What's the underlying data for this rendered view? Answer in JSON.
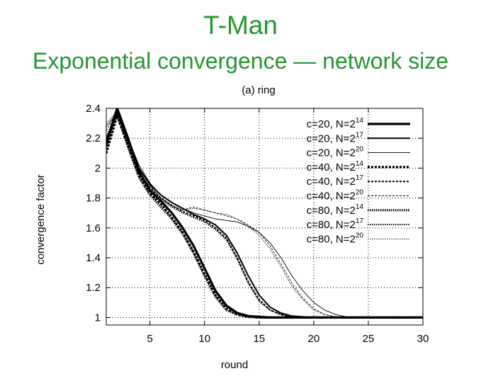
{
  "slide": {
    "title": "T-Man",
    "subtitle": "Exponential convergence — network size"
  },
  "chart_data": {
    "type": "line",
    "title": "(a) ring",
    "xlabel": "round",
    "ylabel": "convergence factor",
    "xlim": [
      1,
      30
    ],
    "ylim": [
      0.95,
      2.4
    ],
    "x_ticks": [
      5,
      10,
      15,
      20,
      25,
      30
    ],
    "y_ticks": [
      "1",
      "1.2",
      "1.4",
      "1.6",
      "1.8",
      "2",
      "2.2",
      "2.4"
    ],
    "grid": true,
    "legend_position": "top-right",
    "series": [
      {
        "name": "c=20, N=2^14",
        "label": "c=20, N=2",
        "exp": "14",
        "x": [
          1,
          2,
          3,
          4,
          5,
          6,
          7,
          8,
          9,
          10,
          11,
          12,
          13,
          14,
          15,
          16,
          17,
          18,
          19,
          20,
          25,
          30
        ],
        "y": [
          2.17,
          2.4,
          2.2,
          1.98,
          1.85,
          1.78,
          1.7,
          1.6,
          1.48,
          1.33,
          1.18,
          1.08,
          1.03,
          1.01,
          1.005,
          1.0,
          1.0,
          1.0,
          1.0,
          1.0,
          1.0,
          1.0
        ]
      },
      {
        "name": "c=20, N=2^17",
        "label": "c=20, N=2",
        "exp": "17",
        "x": [
          1,
          2,
          3,
          4,
          5,
          6,
          7,
          8,
          9,
          10,
          11,
          12,
          13,
          14,
          15,
          16,
          17,
          18,
          19,
          20,
          25,
          30
        ],
        "y": [
          2.15,
          2.39,
          2.2,
          2.0,
          1.89,
          1.82,
          1.77,
          1.73,
          1.69,
          1.66,
          1.62,
          1.55,
          1.43,
          1.28,
          1.15,
          1.07,
          1.03,
          1.01,
          1.005,
          1.0,
          1.0,
          1.0
        ]
      },
      {
        "name": "c=20, N=2^20",
        "label": "c=20, N=2",
        "exp": "20",
        "x": [
          1,
          2,
          3,
          4,
          5,
          6,
          7,
          8,
          9,
          10,
          11,
          12,
          13,
          14,
          15,
          16,
          17,
          18,
          19,
          20,
          21,
          22,
          23,
          25,
          30
        ],
        "y": [
          2.2,
          2.39,
          2.2,
          2.02,
          1.9,
          1.82,
          1.77,
          1.73,
          1.7,
          1.68,
          1.66,
          1.65,
          1.64,
          1.61,
          1.57,
          1.5,
          1.4,
          1.28,
          1.18,
          1.1,
          1.05,
          1.02,
          1.005,
          1.0,
          1.0
        ]
      },
      {
        "name": "c=40, N=2^14",
        "label": "c=40, N=2",
        "exp": "14",
        "x": [
          1,
          2,
          3,
          4,
          5,
          6,
          7,
          8,
          9,
          10,
          11,
          12,
          13,
          14,
          15,
          16,
          17,
          18,
          19,
          20,
          25,
          30
        ],
        "y": [
          2.1,
          2.35,
          2.15,
          1.95,
          1.83,
          1.76,
          1.67,
          1.57,
          1.44,
          1.29,
          1.15,
          1.06,
          1.02,
          1.005,
          1.0,
          1.0,
          1.0,
          1.0,
          1.0,
          1.0,
          1.0,
          1.0
        ]
      },
      {
        "name": "c=40, N=2^17",
        "label": "c=40, N=2",
        "exp": "17",
        "x": [
          1,
          2,
          3,
          4,
          5,
          6,
          7,
          8,
          9,
          10,
          11,
          12,
          13,
          14,
          15,
          16,
          17,
          18,
          19,
          20,
          25,
          30
        ],
        "y": [
          2.12,
          2.36,
          2.17,
          1.97,
          1.87,
          1.8,
          1.75,
          1.71,
          1.68,
          1.65,
          1.6,
          1.53,
          1.4,
          1.24,
          1.12,
          1.05,
          1.02,
          1.005,
          1.0,
          1.0,
          1.0,
          1.0
        ]
      },
      {
        "name": "c=40, N=2^20",
        "label": "c=40, N=2",
        "exp": "20",
        "x": [
          1,
          2,
          3,
          4,
          5,
          6,
          7,
          8,
          9,
          10,
          11,
          12,
          13,
          14,
          15,
          16,
          17,
          18,
          19,
          20,
          21,
          22,
          23,
          25,
          30
        ],
        "y": [
          2.25,
          2.38,
          2.18,
          2.0,
          1.88,
          1.8,
          1.75,
          1.72,
          1.74,
          1.72,
          1.7,
          1.68,
          1.66,
          1.62,
          1.57,
          1.48,
          1.36,
          1.23,
          1.13,
          1.06,
          1.02,
          1.005,
          1.0,
          1.0,
          1.0
        ]
      },
      {
        "name": "c=80, N=2^14",
        "label": "c=80, N=2",
        "exp": "14",
        "x": [
          1,
          2,
          3,
          4,
          5,
          6,
          7,
          8,
          9,
          10,
          11,
          12,
          13,
          14,
          15,
          16,
          17,
          18,
          19,
          20,
          25,
          30
        ],
        "y": [
          2.2,
          2.36,
          2.14,
          1.94,
          1.82,
          1.74,
          1.66,
          1.56,
          1.43,
          1.28,
          1.14,
          1.05,
          1.02,
          1.005,
          1.0,
          1.0,
          1.0,
          1.0,
          1.0,
          1.0,
          1.0,
          1.0
        ]
      },
      {
        "name": "c=80, N=2^17",
        "label": "c=80, N=2",
        "exp": "17",
        "x": [
          1,
          2,
          3,
          4,
          5,
          6,
          7,
          8,
          9,
          10,
          11,
          12,
          13,
          14,
          15,
          16,
          17,
          18,
          19,
          20,
          25,
          30
        ],
        "y": [
          2.28,
          2.37,
          2.16,
          1.96,
          1.86,
          1.79,
          1.74,
          1.7,
          1.67,
          1.64,
          1.59,
          1.52,
          1.39,
          1.23,
          1.11,
          1.05,
          1.02,
          1.005,
          1.0,
          1.0,
          1.0,
          1.0
        ]
      },
      {
        "name": "c=80, N=2^20",
        "label": "c=80, N=2",
        "exp": "20",
        "x": [
          1,
          2,
          3,
          4,
          5,
          6,
          7,
          8,
          9,
          10,
          11,
          12,
          13,
          14,
          15,
          16,
          17,
          18,
          19,
          20,
          21,
          22,
          23,
          25,
          30
        ],
        "y": [
          2.3,
          2.38,
          2.18,
          2.0,
          1.88,
          1.8,
          1.75,
          1.72,
          1.73,
          1.72,
          1.7,
          1.69,
          1.66,
          1.61,
          1.55,
          1.46,
          1.34,
          1.21,
          1.12,
          1.05,
          1.02,
          1.005,
          1.0,
          1.0,
          1.0
        ]
      }
    ]
  }
}
